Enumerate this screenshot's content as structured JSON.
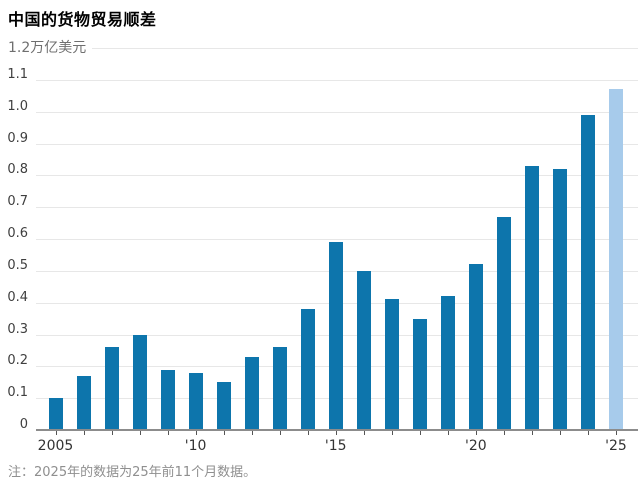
{
  "title": "中国的货物贸易顺差",
  "footnote": "注：2025年的数据为25年前11个月数据。",
  "colors": {
    "bar": "#0d75ac",
    "bar_highlight": "#a7cbeb",
    "grid": "#e7e7e7",
    "axis": "#8c8c8c",
    "tick": "#555555"
  },
  "chart_data": {
    "type": "bar",
    "title": "中国的货物贸易顺差",
    "unit": "万亿美元",
    "y_top_label": "1.2万亿美元",
    "categories": [
      "2005",
      "2006",
      "2007",
      "2008",
      "2009",
      "2010",
      "2011",
      "2012",
      "2013",
      "2014",
      "2015",
      "2016",
      "2017",
      "2018",
      "2019",
      "2020",
      "2021",
      "2022",
      "2023",
      "2024",
      "2025"
    ],
    "values": [
      0.1,
      0.17,
      0.26,
      0.3,
      0.19,
      0.18,
      0.15,
      0.23,
      0.26,
      0.38,
      0.59,
      0.5,
      0.41,
      0.35,
      0.42,
      0.52,
      0.67,
      0.83,
      0.82,
      0.99,
      1.07
    ],
    "highlight_index": 20,
    "highlight_note": "2025为前11个月数据",
    "x_tick_labels": [
      {
        "index": 0,
        "label": "2005"
      },
      {
        "index": 5,
        "label": "'10"
      },
      {
        "index": 10,
        "label": "'15"
      },
      {
        "index": 15,
        "label": "'20"
      },
      {
        "index": 20,
        "label": "'25"
      }
    ],
    "y_tick_labels": [
      "0",
      "0.1",
      "0.2",
      "0.3",
      "0.4",
      "0.5",
      "0.6",
      "0.7",
      "0.8",
      "0.9",
      "1.0",
      "1.1"
    ],
    "ylim": [
      0,
      1.2
    ],
    "grid": true,
    "legend": "none"
  }
}
